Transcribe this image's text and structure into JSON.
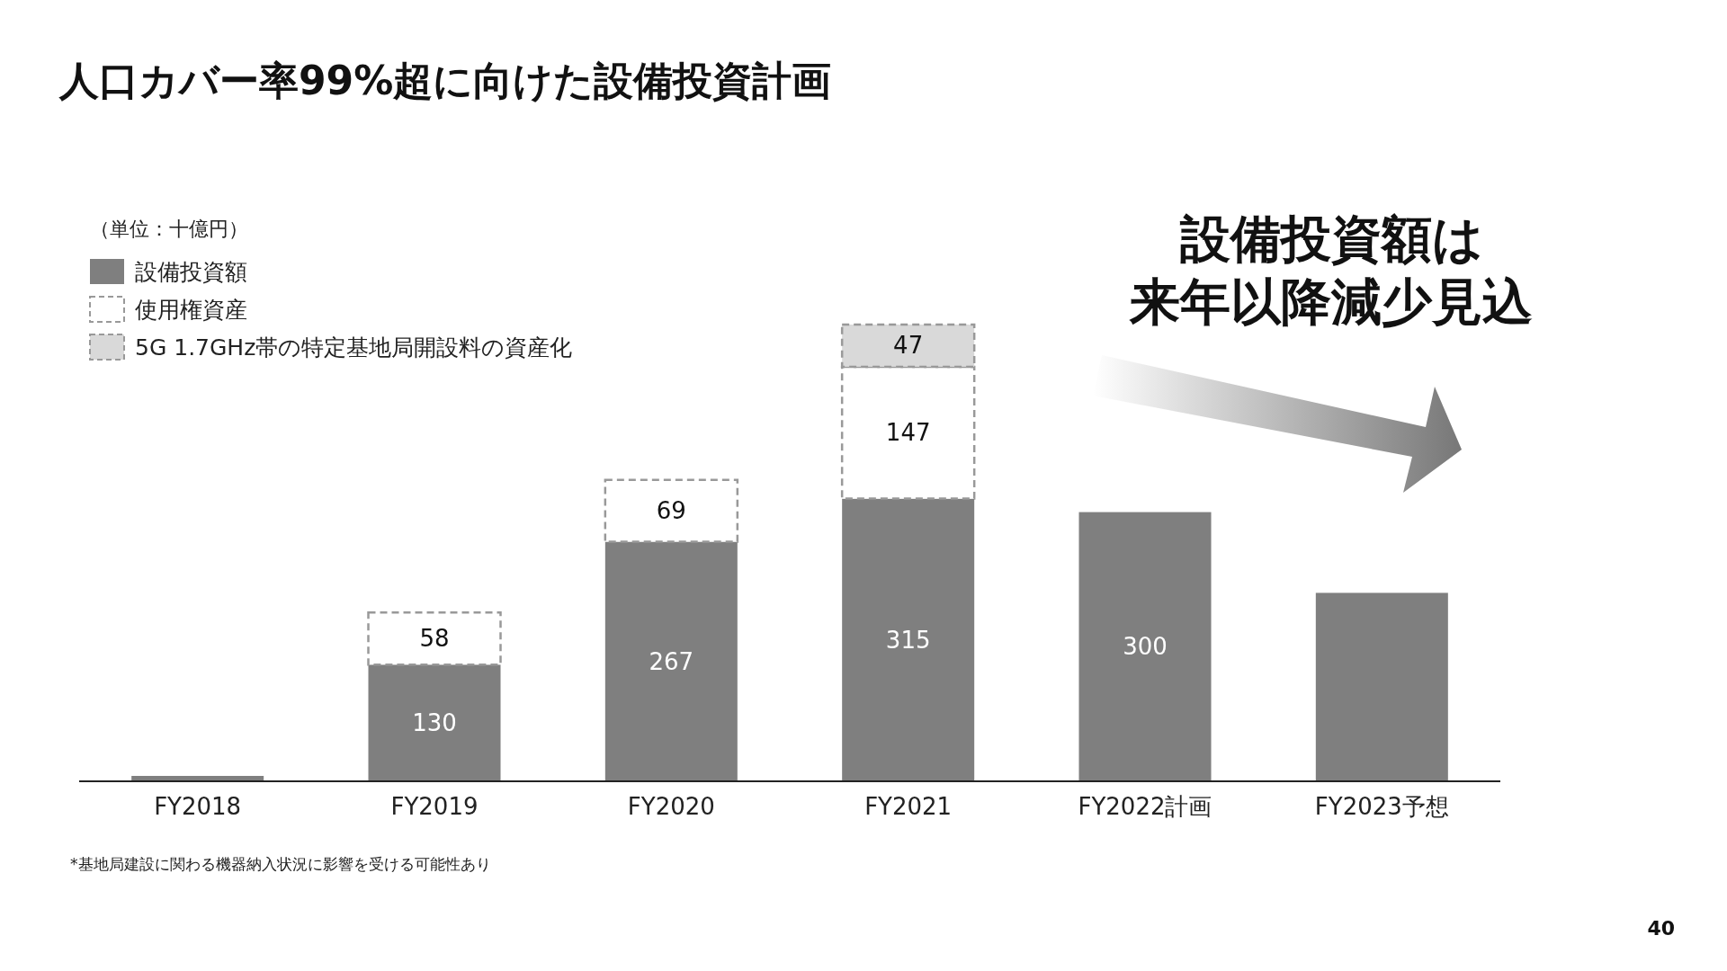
{
  "chart_data": {
    "type": "bar",
    "title": "人口カバー率99%超に向けた設備投資計画",
    "stacked": true,
    "legend": "top left",
    "categories": [
      "FY2018",
      "FY2019",
      "FY2020",
      "FY2021",
      "FY2022計画",
      "FY2023予想"
    ],
    "series": [
      {
        "name": "設備投資額",
        "color": "#7f7f7f",
        "values": [
          6,
          130,
          267,
          315,
          300,
          210
        ],
        "value_labels": [
          null,
          "130",
          "267",
          "315",
          "300",
          null
        ]
      },
      {
        "name": "使用権資産",
        "color": "#ffffff",
        "values": [
          null,
          58,
          69,
          147,
          null,
          null
        ],
        "value_labels": [
          null,
          "58",
          "69",
          "147",
          null,
          null
        ]
      },
      {
        "name": "5G 1.7GHz帯の特定基地局開設料の資産化",
        "color": "#d9d9d9",
        "values": [
          null,
          null,
          null,
          47,
          null,
          null
        ],
        "value_labels": [
          null,
          null,
          null,
          "47",
          null,
          null
        ]
      }
    ],
    "annotations": [
      "（単位：十億円）",
      "設備投資額は",
      "来年以降減少見込",
      "*基地局建設に関わる機器納入状況に影響を受ける可能性あり",
      "40"
    ]
  }
}
